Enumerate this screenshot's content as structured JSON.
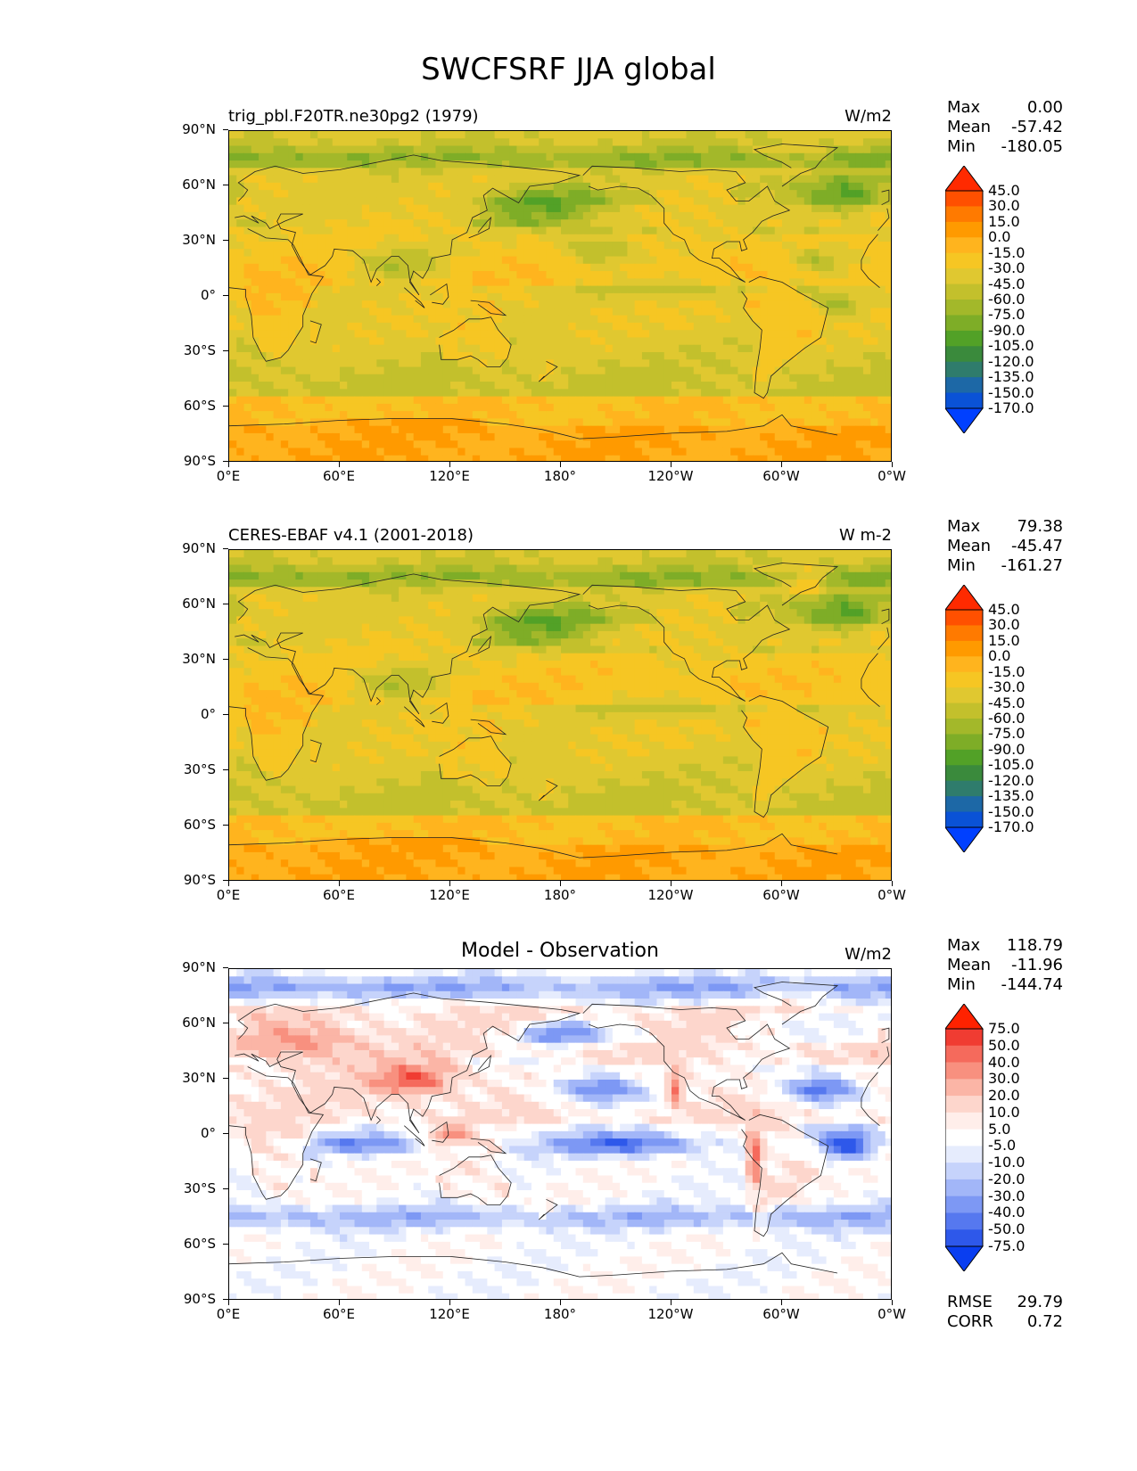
{
  "figure_title": "SWCFSRF JJA global",
  "y_ticks": [
    "90°N",
    "60°N",
    "30°N",
    "0°",
    "30°S",
    "60°S",
    "90°S"
  ],
  "x_ticks": [
    "0°E",
    "60°E",
    "120°E",
    "180°",
    "120°W",
    "60°W",
    "0°W"
  ],
  "panels": [
    {
      "left_title": "trig_pbl.F20TR.ne30pg2 (1979)",
      "center_title": "",
      "right_title": "W/m2",
      "stats": [
        {
          "label": "Max",
          "value": "0.00"
        },
        {
          "label": "Mean",
          "value": "-57.42"
        },
        {
          "label": "Min",
          "value": "-180.05"
        }
      ],
      "colorbar_levels": [
        "45.0",
        "30.0",
        "15.0",
        "0.0",
        "-15.0",
        "-30.0",
        "-45.0",
        "-60.0",
        "-75.0",
        "-90.0",
        "-105.0",
        "-120.0",
        "-135.0",
        "-150.0",
        "-170.0"
      ],
      "colorbar_colors": [
        "#ff2a00",
        "#ff5000",
        "#ff7a00",
        "#ff9a00",
        "#ffb41e",
        "#f6c623",
        "#e0c830",
        "#c3c02c",
        "#a3b82a",
        "#7ead27",
        "#52a127",
        "#3a8a3c",
        "#2f7c6c",
        "#1d68a6",
        "#0a52d6",
        "#0040ff"
      ],
      "field_type": "model"
    },
    {
      "left_title": "CERES-EBAF v4.1 (2001-2018)",
      "center_title": "",
      "right_title": "W m-2",
      "stats": [
        {
          "label": "Max",
          "value": "79.38"
        },
        {
          "label": "Mean",
          "value": "-45.47"
        },
        {
          "label": "Min",
          "value": "-161.27"
        }
      ],
      "colorbar_levels": [
        "45.0",
        "30.0",
        "15.0",
        "0.0",
        "-15.0",
        "-30.0",
        "-45.0",
        "-60.0",
        "-75.0",
        "-90.0",
        "-105.0",
        "-120.0",
        "-135.0",
        "-150.0",
        "-170.0"
      ],
      "colorbar_colors": [
        "#ff2a00",
        "#ff5000",
        "#ff7a00",
        "#ff9a00",
        "#ffb41e",
        "#f6c623",
        "#e0c830",
        "#c3c02c",
        "#a3b82a",
        "#7ead27",
        "#52a127",
        "#3a8a3c",
        "#2f7c6c",
        "#1d68a6",
        "#0a52d6",
        "#0040ff"
      ],
      "field_type": "obs"
    },
    {
      "left_title": "",
      "center_title": "Model - Observation",
      "right_title": "W/m2",
      "stats": [
        {
          "label": "Max",
          "value": "118.79"
        },
        {
          "label": "Mean",
          "value": "-11.96"
        },
        {
          "label": "Min",
          "value": "-144.74"
        }
      ],
      "colorbar_levels": [
        "75.0",
        "50.0",
        "40.0",
        "30.0",
        "20.0",
        "10.0",
        "5.0",
        "-5.0",
        "-10.0",
        "-20.0",
        "-30.0",
        "-40.0",
        "-50.0",
        "-75.0"
      ],
      "colorbar_colors": [
        "#ff2200",
        "#f03c32",
        "#f56a5c",
        "#f8907f",
        "#fbb5a6",
        "#fdd6cc",
        "#ffeeea",
        "#ffffff",
        "#e6ecfd",
        "#c6d3fb",
        "#a2b6f8",
        "#7d98f4",
        "#5678ef",
        "#2e58ea",
        "#0a3ef0"
      ],
      "field_type": "diff",
      "bottom_stats": [
        {
          "label": "RMSE",
          "value": "29.79"
        },
        {
          "label": "CORR",
          "value": "0.72"
        }
      ]
    }
  ]
}
